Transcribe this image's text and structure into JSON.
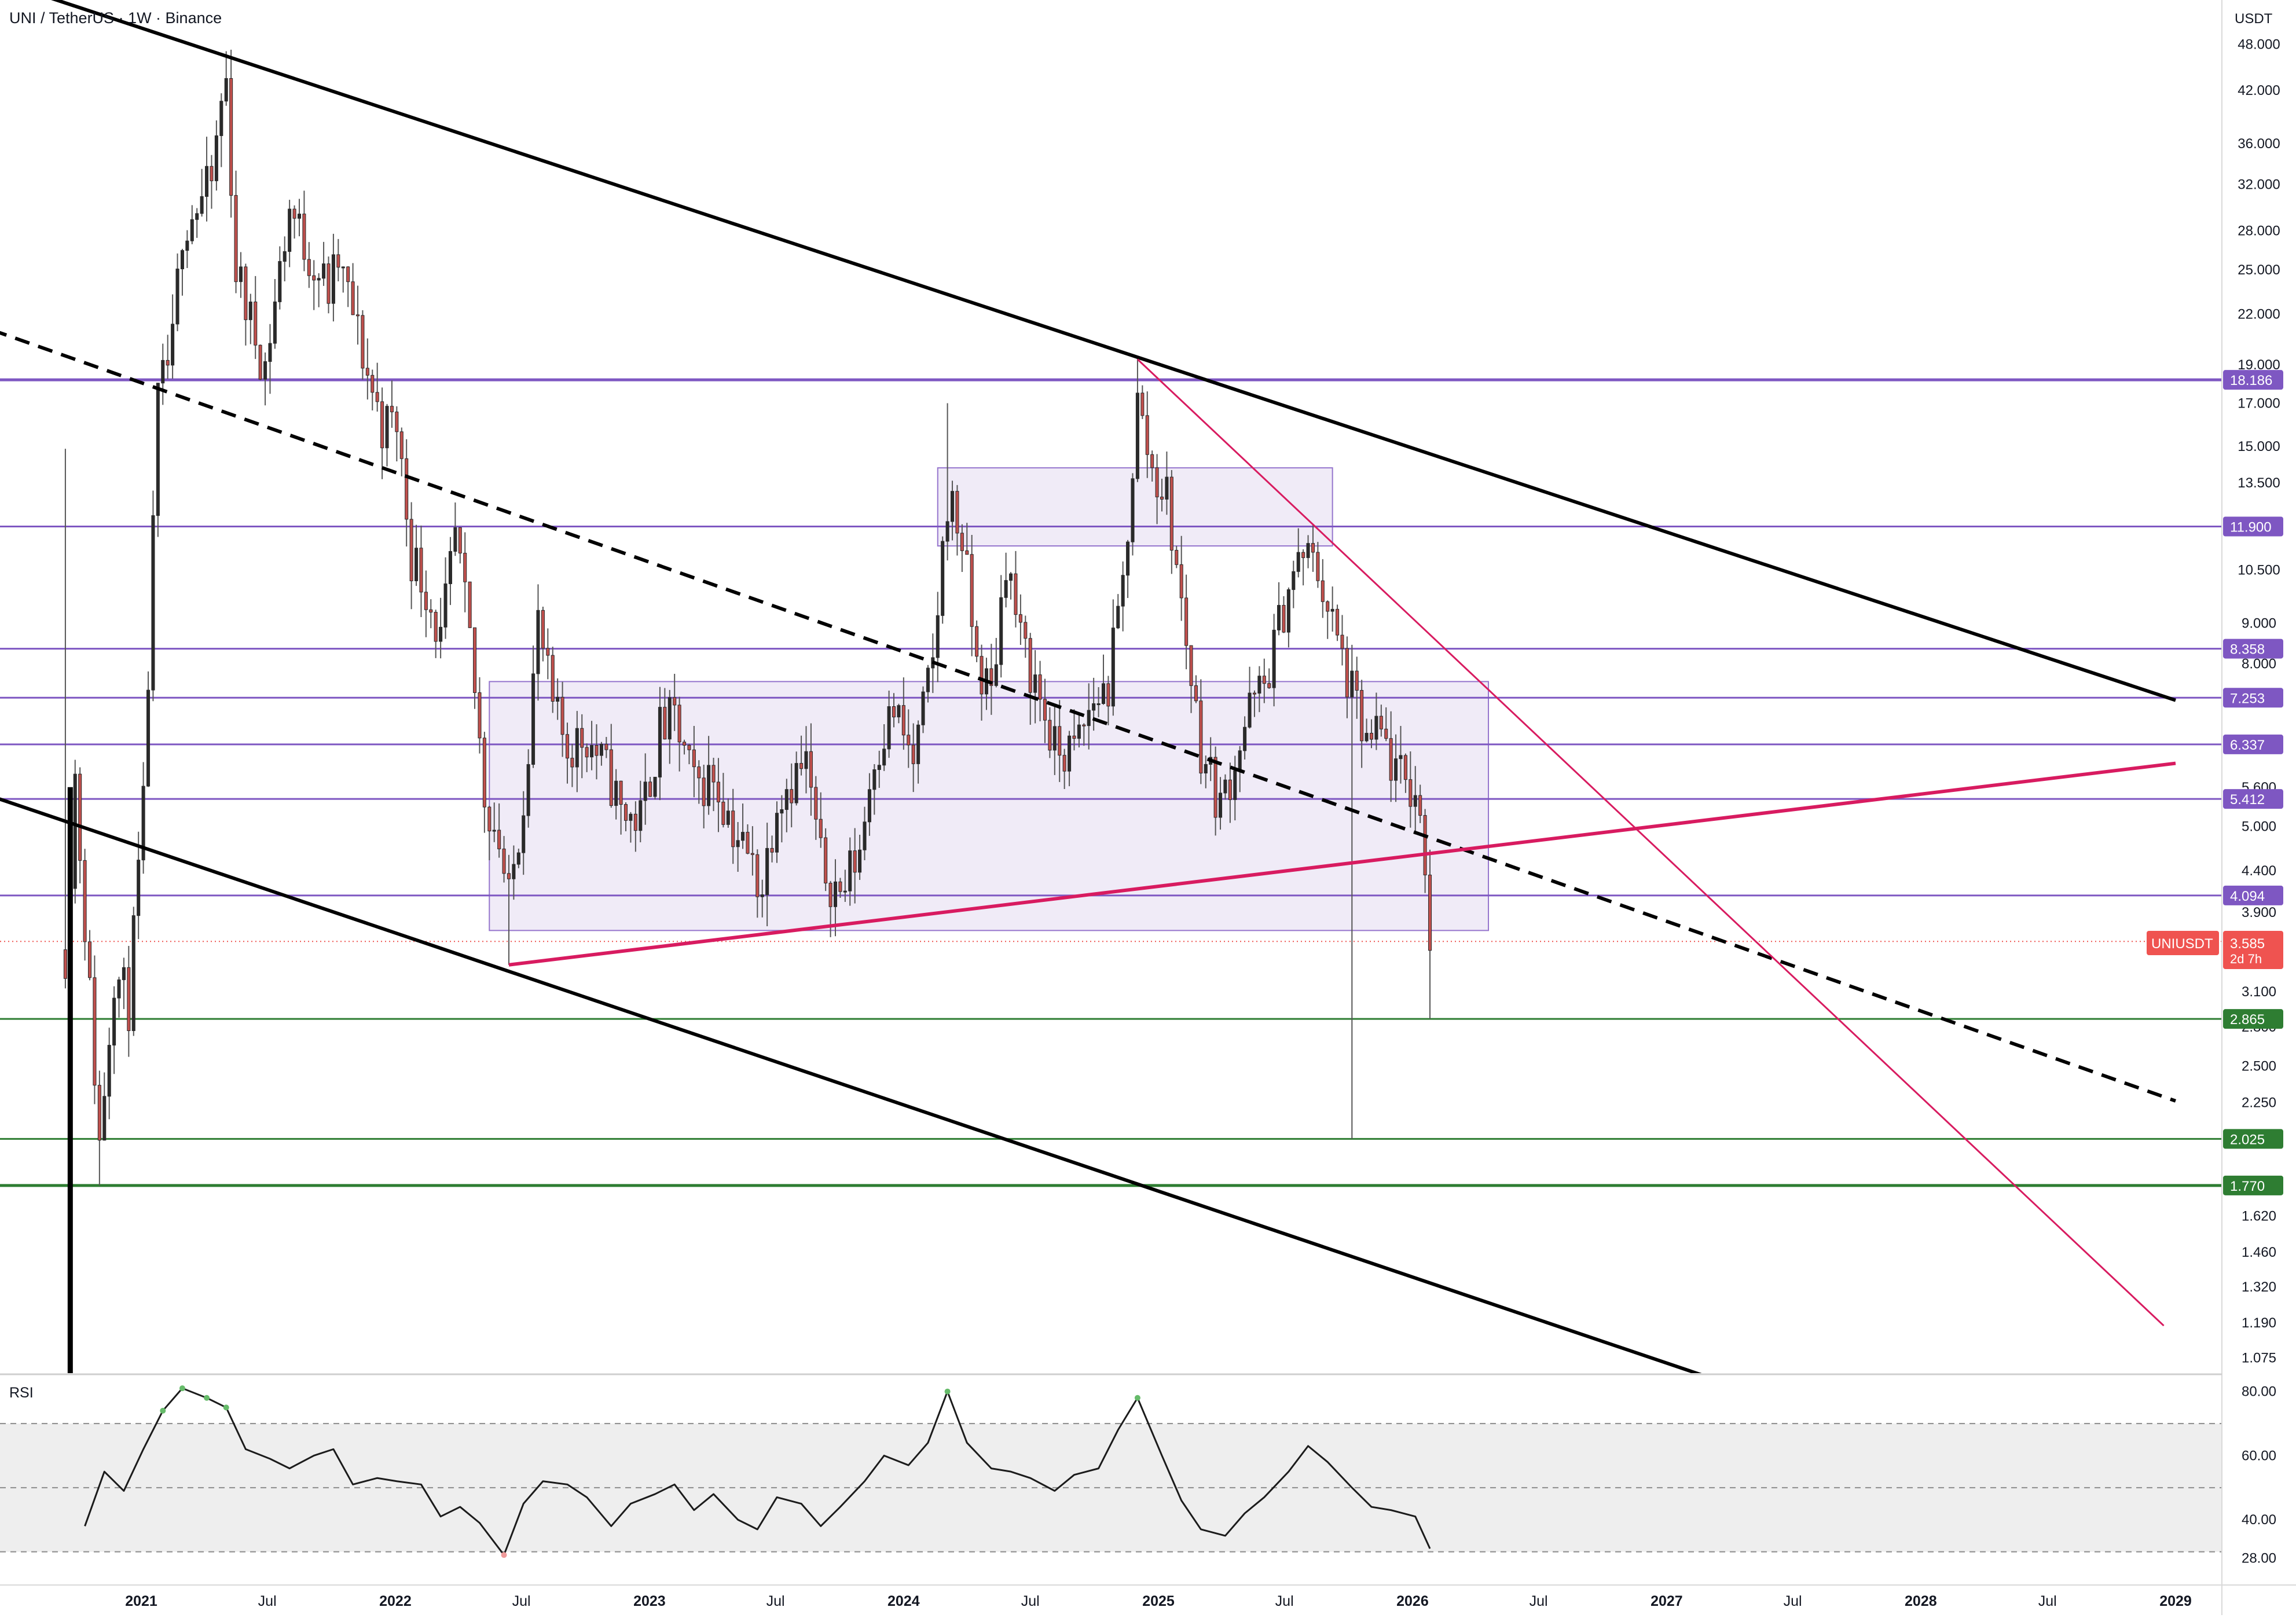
{
  "symbol": {
    "title": "UNI / TetherUS · 1W · Binance",
    "axis_currency": "USDT",
    "ticker_label": "UNIUSDT",
    "price": "3.585",
    "countdown": "2d 7h"
  },
  "colors": {
    "candle_up": "#2a2a2a",
    "candle_down": "#c0504d",
    "level_purple": "#7e57c2",
    "level_green": "#2e7d32",
    "trend_black": "#000000",
    "trend_magenta": "#d81b60",
    "box_fill": "#ede7f6",
    "box_stroke": "#9575cd",
    "price_tag": "#ef5350",
    "rsi_band": "#eeeeee"
  },
  "chart_data": [
    {
      "type": "candlestick",
      "scale": "log",
      "ylim": [
        0.97,
        58.0
      ],
      "y_ticks": [
        "48.000",
        "42.000",
        "36.000",
        "32.000",
        "28.000",
        "25.000",
        "22.000",
        "19.000",
        "17.000",
        "15.000",
        "13.500",
        "10.500",
        "9.000",
        "8.000",
        "5.600",
        "5.000",
        "4.400",
        "3.900",
        "3.100",
        "2.800",
        "2.500",
        "2.250",
        "1.620",
        "1.460",
        "1.320",
        "1.190",
        "1.075"
      ],
      "x_ticks": [
        {
          "label": "2021",
          "date": "2021-01-01",
          "bold": true
        },
        {
          "label": "Jul",
          "date": "2021-07-01",
          "bold": false
        },
        {
          "label": "2022",
          "date": "2022-01-01",
          "bold": true
        },
        {
          "label": "Jul",
          "date": "2022-07-01",
          "bold": false
        },
        {
          "label": "2023",
          "date": "2023-01-01",
          "bold": true
        },
        {
          "label": "Jul",
          "date": "2023-07-01",
          "bold": false
        },
        {
          "label": "2024",
          "date": "2024-01-01",
          "bold": true
        },
        {
          "label": "Jul",
          "date": "2024-07-01",
          "bold": false
        },
        {
          "label": "2025",
          "date": "2025-01-01",
          "bold": true
        },
        {
          "label": "Jul",
          "date": "2025-07-01",
          "bold": false
        },
        {
          "label": "2026",
          "date": "2026-01-01",
          "bold": true
        },
        {
          "label": "Jul",
          "date": "2026-07-01",
          "bold": false
        },
        {
          "label": "2027",
          "date": "2027-01-01",
          "bold": true
        },
        {
          "label": "Jul",
          "date": "2027-07-01",
          "bold": false
        },
        {
          "label": "2028",
          "date": "2028-01-01",
          "bold": true
        },
        {
          "label": "Jul",
          "date": "2028-07-01",
          "bold": false
        },
        {
          "label": "2029",
          "date": "2029-01-01",
          "bold": true
        }
      ],
      "price_path": [
        [
          "2020-09-14",
          3.5
        ],
        [
          "2020-09-28",
          5.8
        ],
        [
          "2020-10-12",
          3.8
        ],
        [
          "2020-11-02",
          2.0
        ],
        [
          "2020-11-23",
          3.3
        ],
        [
          "2020-12-14",
          3.0
        ],
        [
          "2021-01-04",
          5.2
        ],
        [
          "2021-01-25",
          17.0
        ],
        [
          "2021-02-15",
          20.0
        ],
        [
          "2021-03-01",
          28.5
        ],
        [
          "2021-03-22",
          30.0
        ],
        [
          "2021-04-12",
          32.0
        ],
        [
          "2021-04-26",
          40.5
        ],
        [
          "2021-05-03",
          43.0
        ],
        [
          "2021-05-17",
          25.0
        ],
        [
          "2021-06-07",
          21.5
        ],
        [
          "2021-06-28",
          19.0
        ],
        [
          "2021-07-19",
          25.0
        ],
        [
          "2021-08-02",
          30.0
        ],
        [
          "2021-08-23",
          27.0
        ],
        [
          "2021-09-06",
          25.5
        ],
        [
          "2021-09-27",
          23.5
        ],
        [
          "2021-10-11",
          25.5
        ],
        [
          "2021-11-01",
          22.0
        ],
        [
          "2021-11-22",
          18.5
        ],
        [
          "2021-12-13",
          16.0
        ],
        [
          "2022-01-03",
          16.0
        ],
        [
          "2022-01-24",
          11.0
        ],
        [
          "2022-02-14",
          10.0
        ],
        [
          "2022-03-07",
          8.5
        ],
        [
          "2022-03-28",
          11.5
        ],
        [
          "2022-04-18",
          8.5
        ],
        [
          "2022-05-09",
          5.5
        ],
        [
          "2022-05-30",
          4.8
        ],
        [
          "2022-06-13",
          4.0
        ],
        [
          "2022-07-04",
          5.5
        ],
        [
          "2022-07-25",
          9.0
        ],
        [
          "2022-08-15",
          7.0
        ],
        [
          "2022-09-05",
          6.3
        ],
        [
          "2022-10-03",
          6.5
        ],
        [
          "2022-11-07",
          5.7
        ],
        [
          "2022-11-21",
          5.2
        ],
        [
          "2022-12-19",
          5.1
        ],
        [
          "2023-01-16",
          6.6
        ],
        [
          "2023-02-06",
          6.8
        ],
        [
          "2023-03-06",
          5.6
        ],
        [
          "2023-04-03",
          5.8
        ],
        [
          "2023-05-01",
          5.0
        ],
        [
          "2023-06-12",
          4.2
        ],
        [
          "2023-07-03",
          5.5
        ],
        [
          "2023-08-14",
          6.0
        ],
        [
          "2023-09-04",
          4.5
        ],
        [
          "2023-10-02",
          4.1
        ],
        [
          "2023-10-30",
          4.7
        ],
        [
          "2023-11-20",
          6.2
        ],
        [
          "2023-12-18",
          7.0
        ],
        [
          "2024-01-15",
          6.0
        ],
        [
          "2024-02-12",
          8.0
        ],
        [
          "2024-03-04",
          13.0
        ],
        [
          "2024-03-25",
          11.5
        ],
        [
          "2024-04-15",
          8.0
        ],
        [
          "2024-05-06",
          7.3
        ],
        [
          "2024-05-27",
          11.0
        ],
        [
          "2024-06-17",
          8.5
        ],
        [
          "2024-07-08",
          7.6
        ],
        [
          "2024-08-05",
          6.2
        ],
        [
          "2024-09-02",
          6.2
        ],
        [
          "2024-09-30",
          7.2
        ],
        [
          "2024-10-21",
          7.5
        ],
        [
          "2024-11-11",
          10.0
        ],
        [
          "2024-12-02",
          17.0
        ],
        [
          "2024-12-23",
          14.0
        ],
        [
          "2025-01-13",
          13.0
        ],
        [
          "2025-02-03",
          9.5
        ],
        [
          "2025-03-03",
          6.3
        ],
        [
          "2025-03-31",
          5.3
        ],
        [
          "2025-04-14",
          5.8
        ],
        [
          "2025-05-12",
          7.0
        ],
        [
          "2025-06-02",
          7.5
        ],
        [
          "2025-07-07",
          10.0
        ],
        [
          "2025-07-28",
          11.0
        ],
        [
          "2025-08-18",
          10.5
        ],
        [
          "2025-09-15",
          8.5
        ],
        [
          "2025-10-06",
          7.3
        ],
        [
          "2025-10-27",
          6.3
        ],
        [
          "2025-11-17",
          6.5
        ],
        [
          "2025-12-08",
          5.8
        ],
        [
          "2026-01-05",
          5.5
        ],
        [
          "2026-01-19",
          4.6
        ],
        [
          "2026-01-26",
          3.585
        ]
      ],
      "wick_extremes": [
        {
          "date": "2020-09-14",
          "price": 14.9
        },
        {
          "date": "2020-11-02",
          "price": 1.77
        },
        {
          "date": "2021-05-03",
          "price": 44.9
        },
        {
          "date": "2022-06-13",
          "price": 3.35
        },
        {
          "date": "2024-03-04",
          "price": 17.0
        },
        {
          "date": "2024-12-02",
          "price": 19.5
        },
        {
          "date": "2025-10-06",
          "price": 2.025
        },
        {
          "date": "2026-01-26",
          "price": 2.865
        }
      ],
      "levels": [
        {
          "label": "18.186",
          "value": 18.186,
          "color": "purple"
        },
        {
          "label": "11.900",
          "value": 11.9,
          "color": "purple"
        },
        {
          "label": "8.358",
          "value": 8.358,
          "color": "purple"
        },
        {
          "label": "7.253",
          "value": 7.253,
          "color": "purple"
        },
        {
          "label": "6.337",
          "value": 6.337,
          "color": "purple"
        },
        {
          "label": "5.412",
          "value": 5.412,
          "color": "purple"
        },
        {
          "label": "4.094",
          "value": 4.094,
          "color": "purple"
        },
        {
          "label": "2.865",
          "value": 2.865,
          "color": "green"
        },
        {
          "label": "2.025",
          "value": 2.025,
          "color": "green"
        },
        {
          "label": "1.770",
          "value": 1.77,
          "color": "green"
        }
      ],
      "zones": [
        {
          "from": "2024-02-19",
          "to": "2025-09-08",
          "low": 11.25,
          "high": 14.1
        },
        {
          "from": "2022-05-16",
          "to": "2026-04-20",
          "low": 3.7,
          "high": 7.6
        }
      ],
      "trendlines": [
        {
          "style": "solid",
          "color": "black",
          "p1": [
            "2020-06-01",
            58.0
          ],
          "p2": [
            "2029-01-01",
            7.2
          ]
        },
        {
          "style": "solid",
          "color": "black",
          "p1": [
            "2020-06-01",
            5.45
          ],
          "p2": [
            "2027-05-10",
            0.97
          ]
        },
        {
          "style": "dashed",
          "color": "black",
          "p1": [
            "2020-06-01",
            21.0
          ],
          "p2": [
            "2029-01-01",
            2.26
          ]
        },
        {
          "style": "solid",
          "color": "magenta",
          "p1": [
            "2022-06-13",
            3.35
          ],
          "p2": [
            "2029-01-01",
            6.0
          ]
        },
        {
          "style": "thin",
          "color": "magenta",
          "p1": [
            "2024-12-02",
            19.3
          ],
          "p2": [
            "2028-12-15",
            1.18
          ]
        }
      ]
    },
    {
      "type": "line",
      "name": "RSI",
      "ylim": [
        20,
        85
      ],
      "y_ticks": [
        "80.00",
        "60.00",
        "40.00",
        "28.00"
      ],
      "bands": [
        70,
        50,
        30
      ],
      "x": [
        "2020-10-12",
        "2020-11-09",
        "2020-12-07",
        "2021-01-04",
        "2021-02-01",
        "2021-03-01",
        "2021-04-05",
        "2021-05-03",
        "2021-05-31",
        "2021-07-05",
        "2021-08-02",
        "2021-09-06",
        "2021-10-04",
        "2021-11-01",
        "2021-12-06",
        "2022-01-03",
        "2022-02-07",
        "2022-03-07",
        "2022-04-04",
        "2022-05-02",
        "2022-06-06",
        "2022-07-04",
        "2022-08-01",
        "2022-09-05",
        "2022-10-03",
        "2022-11-07",
        "2022-12-05",
        "2023-01-09",
        "2023-02-06",
        "2023-03-06",
        "2023-04-03",
        "2023-05-08",
        "2023-06-05",
        "2023-07-03",
        "2023-08-07",
        "2023-09-04",
        "2023-10-02",
        "2023-11-06",
        "2023-12-04",
        "2024-01-08",
        "2024-02-05",
        "2024-03-04",
        "2024-04-01",
        "2024-05-06",
        "2024-06-03",
        "2024-07-01",
        "2024-08-05",
        "2024-09-02",
        "2024-10-07",
        "2024-11-04",
        "2024-12-02",
        "2025-01-06",
        "2025-02-03",
        "2025-03-03",
        "2025-04-07",
        "2025-05-05",
        "2025-06-02",
        "2025-07-07",
        "2025-08-04",
        "2025-09-01",
        "2025-10-06",
        "2025-11-03",
        "2025-12-01",
        "2026-01-05",
        "2026-01-26"
      ],
      "values": [
        38,
        55,
        49,
        62,
        74,
        81,
        78,
        75,
        62,
        59,
        56,
        60,
        62,
        51,
        53,
        52,
        51,
        41,
        44,
        39,
        29,
        45,
        52,
        51,
        47,
        38,
        45,
        48,
        51,
        43,
        48,
        40,
        37,
        47,
        45,
        38,
        44,
        52,
        60,
        57,
        64,
        80,
        64,
        56,
        55,
        53,
        49,
        54,
        56,
        68,
        78,
        60,
        46,
        37,
        35,
        42,
        47,
        55,
        63,
        58,
        50,
        44,
        43,
        41,
        31
      ]
    }
  ]
}
